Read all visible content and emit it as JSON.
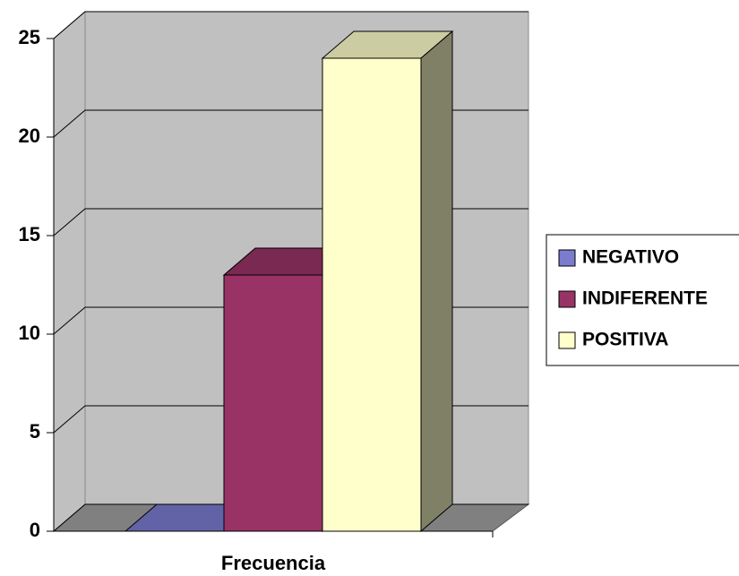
{
  "chart_data": {
    "type": "bar3d",
    "categories": [
      "Frecuencia"
    ],
    "series": [
      {
        "name": "NEGATIVO",
        "color": "#7b7bd0",
        "values": [
          0
        ]
      },
      {
        "name": "INDIFERENTE",
        "color": "#993366",
        "values": [
          13
        ]
      },
      {
        "name": "POSITIVA",
        "color": "#ffffcc",
        "values": [
          24
        ]
      }
    ],
    "ylim": [
      0,
      25
    ],
    "yticks": [
      0,
      5,
      10,
      15,
      20,
      25
    ],
    "grid": true,
    "legend": "right"
  }
}
